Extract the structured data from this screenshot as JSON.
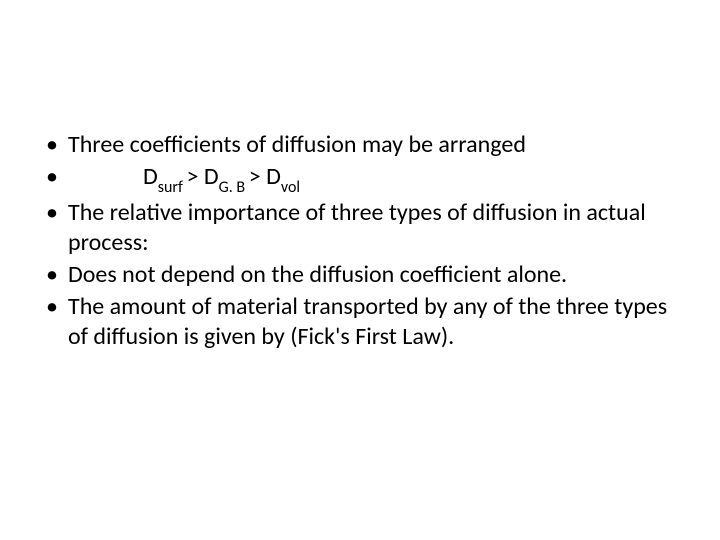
{
  "slide": {
    "background_color": "#ffffff",
    "text_color": "#000000",
    "font_family": "Calibri",
    "body_fontsize": 24,
    "subscript_fontsize": 16,
    "bullets": [
      {
        "text": "Three coefficients of diffusion may be arranged"
      },
      {
        "is_formula": true,
        "parts": [
          {
            "text": "D",
            "sub": "surf "
          },
          {
            "text": ">  D",
            "sub": "G. B "
          },
          {
            "text": "> D",
            "sub": "vol"
          }
        ]
      },
      {
        "text": "The relative importance of three types of diffusion in actual process:"
      },
      {
        "text": "Does not depend on the diffusion coefficient alone."
      },
      {
        "text": "The amount of material transported by any of the three types of diffusion is given by (Fick's First Law)."
      }
    ]
  }
}
